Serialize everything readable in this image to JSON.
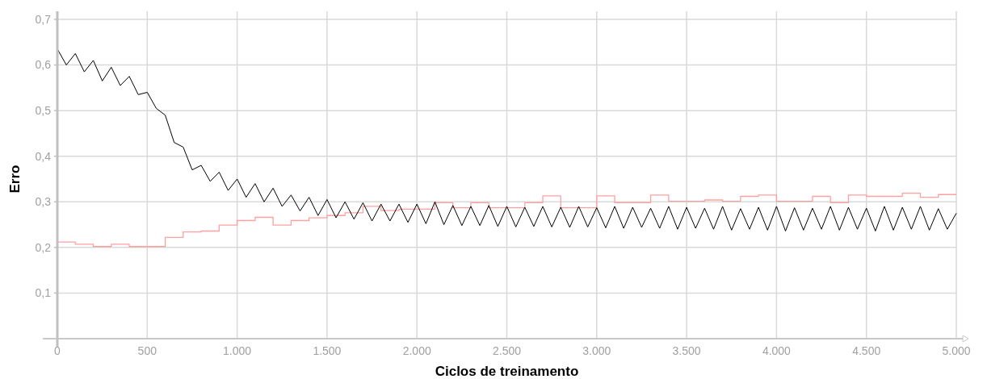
{
  "chart_data": {
    "type": "line",
    "xlabel": "Ciclos de treinamento",
    "ylabel": "Erro",
    "xlim": [
      0,
      5000
    ],
    "ylim": [
      0,
      0.7
    ],
    "xticks": [
      0,
      500,
      {
        "value": 1000,
        "label": "1.000"
      },
      {
        "value": 1500,
        "label": "1.500"
      },
      {
        "value": 2000,
        "label": "2.000"
      },
      {
        "value": 2500,
        "label": "2.500"
      },
      {
        "value": 3000,
        "label": "3.000"
      },
      {
        "value": 3500,
        "label": "3.500"
      },
      {
        "value": 4000,
        "label": "4.000"
      },
      {
        "value": 4500,
        "label": "4.500"
      },
      {
        "value": 5000,
        "label": "5.000"
      }
    ],
    "yticks": [
      {
        "value": 0.1,
        "label": "0,1"
      },
      {
        "value": 0.2,
        "label": "0,2"
      },
      {
        "value": 0.3,
        "label": "0,3"
      },
      {
        "value": 0.4,
        "label": "0,4"
      },
      {
        "value": 0.5,
        "label": "0,5"
      },
      {
        "value": 0.6,
        "label": "0,6"
      },
      {
        "value": 0.7,
        "label": "0,7"
      }
    ],
    "grid": true,
    "marker": "none",
    "line_style": "solid",
    "series": [
      {
        "type": "step",
        "color": "#ffa0a0",
        "x": [
          0,
          100,
          200,
          300,
          400,
          500,
          600,
          700,
          800,
          900,
          1000,
          1100,
          1200,
          1300,
          1400,
          1500,
          1600,
          1700,
          1800,
          1900,
          2000,
          2100,
          2200,
          2300,
          2400,
          2500,
          2600,
          2700,
          2800,
          2900,
          3000,
          3100,
          3200,
          3300,
          3400,
          3500,
          3600,
          3700,
          3800,
          3900,
          4000,
          4100,
          4200,
          4300,
          4400,
          4500,
          4600,
          4700,
          4800,
          4900,
          5000
        ],
        "values": [
          0.212,
          0.207,
          0.202,
          0.207,
          0.202,
          0.202,
          0.222,
          0.234,
          0.236,
          0.249,
          0.259,
          0.266,
          0.249,
          0.259,
          0.265,
          0.27,
          0.276,
          0.29,
          0.281,
          0.284,
          0.284,
          0.298,
          0.287,
          0.298,
          0.287,
          0.287,
          0.298,
          0.313,
          0.287,
          0.287,
          0.313,
          0.298,
          0.298,
          0.315,
          0.301,
          0.301,
          0.304,
          0.301,
          0.312,
          0.315,
          0.301,
          0.301,
          0.312,
          0.298,
          0.315,
          0.312,
          0.312,
          0.319,
          0.31,
          0.316,
          0.316
        ]
      },
      {
        "color": "#000000",
        "x": [
          0,
          50,
          100,
          150,
          200,
          250,
          300,
          350,
          400,
          450,
          500,
          550,
          600,
          650,
          700,
          750,
          800,
          850,
          900,
          950,
          1000,
          1050,
          1100,
          1150,
          1200,
          1250,
          1300,
          1350,
          1400,
          1450,
          1500,
          1550,
          1600,
          1650,
          1700,
          1750,
          1800,
          1850,
          1900,
          1950,
          2000,
          2050,
          2100,
          2150,
          2200,
          2250,
          2300,
          2350,
          2400,
          2450,
          2500,
          2550,
          2600,
          2650,
          2700,
          2750,
          2800,
          2850,
          2900,
          2950,
          3000,
          3050,
          3100,
          3150,
          3200,
          3250,
          3300,
          3350,
          3400,
          3450,
          3500,
          3550,
          3600,
          3650,
          3700,
          3750,
          3800,
          3850,
          3900,
          3950,
          4000,
          4050,
          4100,
          4150,
          4200,
          4250,
          4300,
          4350,
          4400,
          4450,
          4500,
          4550,
          4600,
          4650,
          4700,
          4750,
          4800,
          4850,
          4900,
          4950,
          5000
        ],
        "values": [
          0.635,
          0.6,
          0.625,
          0.585,
          0.61,
          0.565,
          0.595,
          0.555,
          0.575,
          0.535,
          0.54,
          0.505,
          0.49,
          0.43,
          0.42,
          0.37,
          0.38,
          0.345,
          0.365,
          0.325,
          0.35,
          0.31,
          0.34,
          0.3,
          0.33,
          0.29,
          0.315,
          0.28,
          0.31,
          0.27,
          0.305,
          0.265,
          0.3,
          0.262,
          0.298,
          0.258,
          0.295,
          0.258,
          0.295,
          0.255,
          0.295,
          0.252,
          0.3,
          0.25,
          0.292,
          0.248,
          0.29,
          0.248,
          0.292,
          0.246,
          0.29,
          0.245,
          0.288,
          0.246,
          0.29,
          0.245,
          0.288,
          0.244,
          0.29,
          0.245,
          0.287,
          0.243,
          0.29,
          0.242,
          0.288,
          0.244,
          0.286,
          0.242,
          0.29,
          0.24,
          0.288,
          0.242,
          0.286,
          0.24,
          0.29,
          0.238,
          0.285,
          0.24,
          0.288,
          0.238,
          0.29,
          0.236,
          0.287,
          0.238,
          0.286,
          0.24,
          0.29,
          0.238,
          0.288,
          0.24,
          0.286,
          0.236,
          0.29,
          0.238,
          0.288,
          0.24,
          0.29,
          0.238,
          0.285,
          0.24,
          0.275
        ]
      }
    ]
  }
}
